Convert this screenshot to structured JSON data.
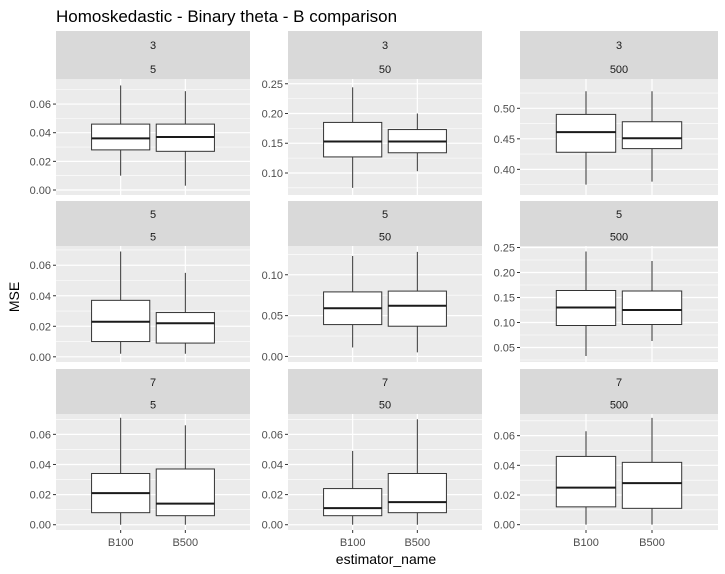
{
  "chart_data": {
    "type": "boxplot",
    "title": "Homoskedastic - Binary theta - B comparison",
    "xlabel": "estimator_name",
    "ylabel": "MSE",
    "categories": [
      "B100",
      "B500"
    ],
    "grid": true,
    "panels": [
      {
        "strip": [
          "3",
          "5"
        ],
        "ylim": [
          -0.0035,
          0.0775
        ],
        "yticks": [
          0.0,
          0.02,
          0.04,
          0.06
        ],
        "tick_labels": [
          "0.00",
          "0.02",
          "0.04",
          "0.06"
        ],
        "boxes": [
          {
            "category": "B100",
            "min": 0.01,
            "q1": 0.028,
            "median": 0.036,
            "q3": 0.046,
            "max": 0.073
          },
          {
            "category": "B500",
            "min": 0.003,
            "q1": 0.027,
            "median": 0.037,
            "q3": 0.046,
            "max": 0.069
          }
        ]
      },
      {
        "strip": [
          "3",
          "50"
        ],
        "ylim": [
          0.063,
          0.258
        ],
        "yticks": [
          0.1,
          0.15,
          0.2,
          0.25
        ],
        "tick_labels": [
          "0.10",
          "0.15",
          "0.20",
          "0.25"
        ],
        "boxes": [
          {
            "category": "B100",
            "min": 0.075,
            "q1": 0.127,
            "median": 0.153,
            "q3": 0.185,
            "max": 0.244
          },
          {
            "category": "B500",
            "min": 0.103,
            "q1": 0.134,
            "median": 0.153,
            "q3": 0.173,
            "max": 0.2
          }
        ]
      },
      {
        "strip": [
          "3",
          "500"
        ],
        "ylim": [
          0.358,
          0.548
        ],
        "yticks": [
          0.4,
          0.45,
          0.5
        ],
        "tick_labels": [
          "0.40",
          "0.45",
          "0.50"
        ],
        "boxes": [
          {
            "category": "B100",
            "min": 0.375,
            "q1": 0.428,
            "median": 0.461,
            "q3": 0.49,
            "max": 0.528
          },
          {
            "category": "B500",
            "min": 0.38,
            "q1": 0.434,
            "median": 0.451,
            "q3": 0.478,
            "max": 0.528
          }
        ]
      },
      {
        "strip": [
          "5",
          "5"
        ],
        "ylim": [
          -0.0034,
          0.0726
        ],
        "yticks": [
          0.0,
          0.02,
          0.04,
          0.06
        ],
        "tick_labels": [
          "0.00",
          "0.02",
          "0.04",
          "0.06"
        ],
        "boxes": [
          {
            "category": "B100",
            "min": 0.002,
            "q1": 0.01,
            "median": 0.023,
            "q3": 0.037,
            "max": 0.069
          },
          {
            "category": "B500",
            "min": 0.002,
            "q1": 0.009,
            "median": 0.022,
            "q3": 0.029,
            "max": 0.055
          }
        ]
      },
      {
        "strip": [
          "5",
          "50"
        ],
        "ylim": [
          -0.0068,
          0.1352
        ],
        "yticks": [
          0.0,
          0.05,
          0.1
        ],
        "tick_labels": [
          "0.00",
          "0.05",
          "0.10"
        ],
        "boxes": [
          {
            "category": "B100",
            "min": 0.011,
            "q1": 0.039,
            "median": 0.059,
            "q3": 0.079,
            "max": 0.123
          },
          {
            "category": "B500",
            "min": 0.005,
            "q1": 0.037,
            "median": 0.062,
            "q3": 0.08,
            "max": 0.128
          }
        ]
      },
      {
        "strip": [
          "5",
          "500"
        ],
        "ylim": [
          0.021,
          0.253
        ],
        "yticks": [
          0.05,
          0.1,
          0.15,
          0.2,
          0.25
        ],
        "tick_labels": [
          "0.05",
          "0.10",
          "0.15",
          "0.20",
          "0.25"
        ],
        "boxes": [
          {
            "category": "B100",
            "min": 0.033,
            "q1": 0.094,
            "median": 0.13,
            "q3": 0.164,
            "max": 0.242
          },
          {
            "category": "B500",
            "min": 0.063,
            "q1": 0.096,
            "median": 0.125,
            "q3": 0.163,
            "max": 0.223
          }
        ]
      },
      {
        "strip": [
          "7",
          "5"
        ],
        "ylim": [
          -0.0035,
          0.0735
        ],
        "yticks": [
          0.0,
          0.02,
          0.04,
          0.06
        ],
        "tick_labels": [
          "0.00",
          "0.02",
          "0.04",
          "0.06"
        ],
        "boxes": [
          {
            "category": "B100",
            "min": 0.0,
            "q1": 0.008,
            "median": 0.021,
            "q3": 0.034,
            "max": 0.071
          },
          {
            "category": "B500",
            "min": 0.0,
            "q1": 0.006,
            "median": 0.014,
            "q3": 0.037,
            "max": 0.066
          }
        ]
      },
      {
        "strip": [
          "7",
          "50"
        ],
        "ylim": [
          -0.0035,
          0.0735
        ],
        "yticks": [
          0.0,
          0.02,
          0.04,
          0.06
        ],
        "tick_labels": [
          "0.00",
          "0.02",
          "0.04",
          "0.06"
        ],
        "boxes": [
          {
            "category": "B100",
            "min": 0.0,
            "q1": 0.006,
            "median": 0.011,
            "q3": 0.024,
            "max": 0.049
          },
          {
            "category": "B500",
            "min": 0.0,
            "q1": 0.008,
            "median": 0.015,
            "q3": 0.034,
            "max": 0.07
          }
        ]
      },
      {
        "strip": [
          "7",
          "500"
        ],
        "ylim": [
          -0.0036,
          0.0746
        ],
        "yticks": [
          0.0,
          0.02,
          0.04,
          0.06
        ],
        "tick_labels": [
          "0.00",
          "0.02",
          "0.04",
          "0.06"
        ],
        "boxes": [
          {
            "category": "B100",
            "min": 0.0,
            "q1": 0.012,
            "median": 0.025,
            "q3": 0.046,
            "max": 0.063
          },
          {
            "category": "B500",
            "min": 0.0,
            "q1": 0.011,
            "median": 0.028,
            "q3": 0.042,
            "max": 0.072
          }
        ]
      }
    ]
  },
  "colors": {
    "strip_bg": "#d9d9d9",
    "panel_bg": "#ebebeb",
    "grid": "#ffffff",
    "box_fill": "#ffffff",
    "box_stroke": "#333333",
    "tick_text": "#4d4d4d"
  }
}
